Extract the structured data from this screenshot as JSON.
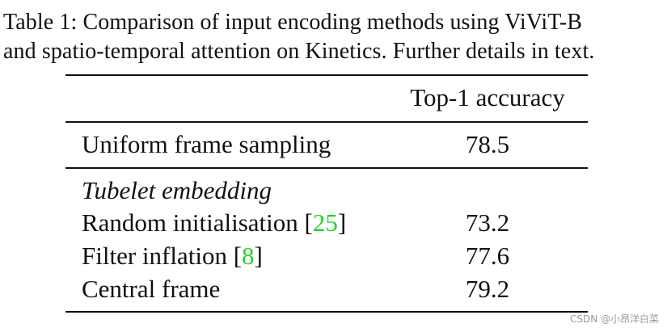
{
  "caption": {
    "line1": "Table 1: Comparison of input encoding methods using ViViT-B",
    "line2": "and spatio-temporal attention on Kinetics. Further details in text."
  },
  "table": {
    "header": {
      "value": "Top-1 accuracy"
    },
    "rows": [
      {
        "label": "Uniform frame sampling",
        "value": "78.5"
      },
      {
        "section": "Tubelet embedding"
      },
      {
        "label": "Random initialisation",
        "cite": "25",
        "value": "73.2"
      },
      {
        "label": "Filter inflation",
        "cite": "8",
        "value": "77.6"
      },
      {
        "label": "Central frame",
        "value": "79.2"
      }
    ]
  },
  "watermark": "CSDN @小昂洋白菜",
  "colors": {
    "citation": "#22d422",
    "text": "#111111"
  }
}
